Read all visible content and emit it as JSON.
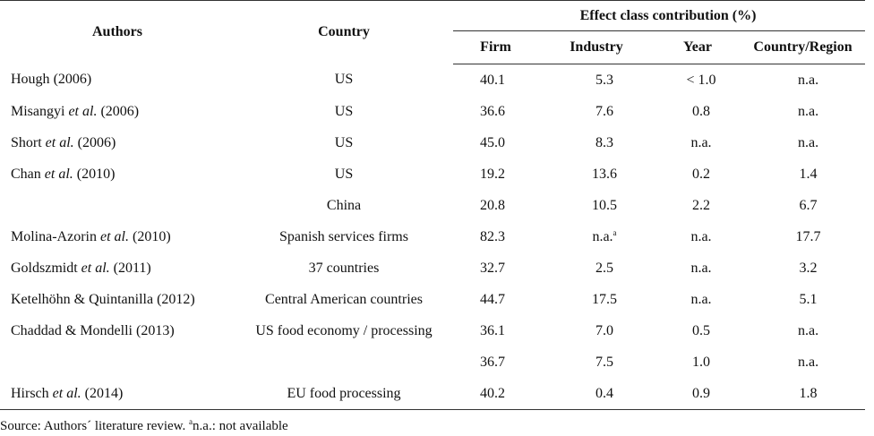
{
  "header": {
    "authors": "Authors",
    "country": "Country",
    "group": "Effect class contribution (%)",
    "firm": "Firm",
    "industry": "Industry",
    "year": "Year",
    "region": "Country/Region"
  },
  "rows": [
    {
      "author_pre": "Hough",
      "author_etal": "",
      "author_post": " (2006)",
      "country": "US",
      "firm": "40.1",
      "industry": "5.3",
      "industry_note": "",
      "year": "< 1.0",
      "region": "n.a."
    },
    {
      "author_pre": "Misangyi ",
      "author_etal": "et al.",
      "author_post": " (2006)",
      "country": "US",
      "firm": "36.6",
      "industry": "7.6",
      "industry_note": "",
      "year": "0.8",
      "region": "n.a."
    },
    {
      "author_pre": "Short ",
      "author_etal": "et al.",
      "author_post": " (2006)",
      "country": "US",
      "firm": "45.0",
      "industry": "8.3",
      "industry_note": "",
      "year": "n.a.",
      "region": "n.a."
    },
    {
      "author_pre": "Chan ",
      "author_etal": "et al.",
      "author_post": " (2010)",
      "country": "US",
      "firm": "19.2",
      "industry": "13.6",
      "industry_note": "",
      "year": "0.2",
      "region": "1.4"
    },
    {
      "author_pre": "",
      "author_etal": "",
      "author_post": "",
      "country": "China",
      "firm": "20.8",
      "industry": "10.5",
      "industry_note": "",
      "year": "2.2",
      "region": "6.7"
    },
    {
      "author_pre": "Molina-Azorin ",
      "author_etal": "et al.",
      "author_post": " (2010)",
      "country": "Spanish services firms",
      "firm": "82.3",
      "industry": "n.a.",
      "industry_note": "a",
      "year": "n.a.",
      "region": "17.7"
    },
    {
      "author_pre": "Goldszmidt ",
      "author_etal": "et al.",
      "author_post": " (2011)",
      "country": "37 countries",
      "firm": "32.7",
      "industry": "2.5",
      "industry_note": "",
      "year": "n.a.",
      "region": "3.2"
    },
    {
      "author_pre": "Ketelhöhn & Quintanilla (2012)",
      "author_etal": "",
      "author_post": "",
      "country": "Central American countries",
      "firm": "44.7",
      "industry": "17.5",
      "industry_note": "",
      "year": "n.a.",
      "region": "5.1"
    },
    {
      "author_pre": "Chaddad & Mondelli (2013)",
      "author_etal": "",
      "author_post": "",
      "country": "US food economy / processing",
      "firm": "36.1",
      "industry": "7.0",
      "industry_note": "",
      "year": "0.5",
      "region": "n.a."
    },
    {
      "author_pre": "",
      "author_etal": "",
      "author_post": "",
      "country": "",
      "firm": "36.7",
      "industry": "7.5",
      "industry_note": "",
      "year": "1.0",
      "region": "n.a."
    },
    {
      "author_pre": "Hirsch ",
      "author_etal": "et al.",
      "author_post": " (2014)",
      "country": "EU food processing",
      "firm": "40.2",
      "industry": "0.4",
      "industry_note": "",
      "year": "0.9",
      "region": "1.8"
    }
  ],
  "footer": {
    "source_pre": "Source: Authors´ literature review. ",
    "source_note": "a",
    "source_post": "n.a.: not available"
  }
}
